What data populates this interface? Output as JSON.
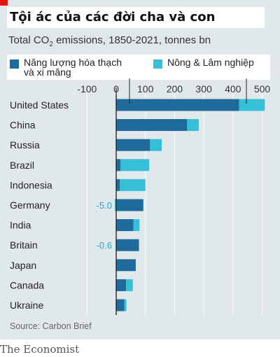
{
  "header": {
    "title": "Tội ác của các đời cha và con",
    "subtitle_pre": "Total CO",
    "subtitle_sub": "2",
    "subtitle_post": " emissions, 1850-2021, tonnes bn"
  },
  "legend": {
    "fossil": "Năng lượng hóa thạch\nvà xi măng",
    "land": "Nông & Lâm nghiệp"
  },
  "colors": {
    "background": "#e1e8ec",
    "fossil": "#1e6a9b",
    "land": "#35c0d7",
    "negative_label": "#1da7c9",
    "accent_red": "#e3120b"
  },
  "chart_data": {
    "type": "bar",
    "orientation": "horizontal",
    "stacked": true,
    "categories": [
      "United States",
      "China",
      "Russia",
      "Brazil",
      "Indonesia",
      "Germany",
      "India",
      "Britain",
      "Japan",
      "Canada",
      "Ukraine"
    ],
    "series": [
      {
        "name": "Năng lượng hóa thạch và xi măng",
        "values": [
          421,
          243,
          116,
          15,
          12,
          93,
          59,
          78,
          67,
          34,
          28
        ]
      },
      {
        "name": "Nông & Lâm nghiệp",
        "values": [
          88,
          40,
          40,
          98,
          88,
          -5.0,
          21,
          -0.6,
          0,
          23,
          7
        ]
      }
    ],
    "annotations": [
      "-5.0",
      "-0.6"
    ],
    "xticks": [
      -100,
      0,
      100,
      200,
      300,
      400,
      500
    ],
    "xlim": [
      -100,
      525
    ],
    "grid": true
  },
  "footer": {
    "source": "Source: Carbon Brief",
    "brand": "The Economist"
  }
}
